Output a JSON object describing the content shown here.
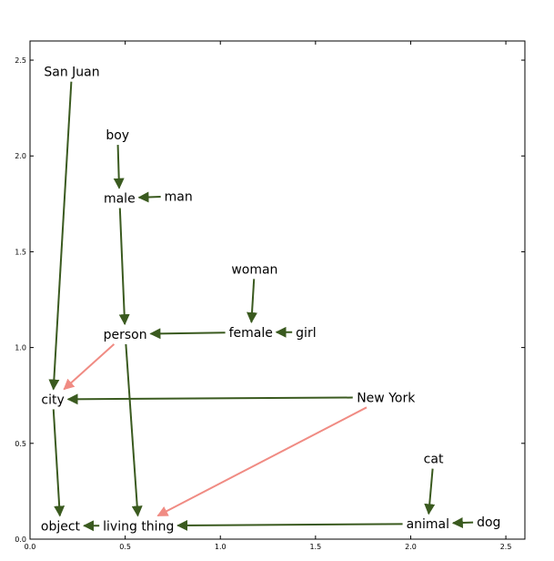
{
  "chart_data": {
    "type": "scatter",
    "title": "",
    "xlabel": "",
    "ylabel": "",
    "xlim": [
      0.0,
      2.6
    ],
    "ylim": [
      0.0,
      2.6
    ],
    "grid": false,
    "x_ticks": [
      "0.0",
      "0.5",
      "1.0",
      "1.5",
      "2.0",
      "2.5"
    ],
    "y_ticks": [
      "0.0",
      "0.5",
      "1.0",
      "1.5",
      "2.0",
      "2.5"
    ],
    "colors": {
      "green": "#3a5a1f",
      "red": "#f08b83"
    },
    "nodes": [
      {
        "id": "san_juan",
        "label": "San Juan",
        "x": 0.22,
        "y": 2.44
      },
      {
        "id": "boy",
        "label": "boy",
        "x": 0.46,
        "y": 2.11
      },
      {
        "id": "male",
        "label": "male",
        "x": 0.47,
        "y": 1.78
      },
      {
        "id": "man",
        "label": "man",
        "x": 0.78,
        "y": 1.79
      },
      {
        "id": "woman",
        "label": "woman",
        "x": 1.18,
        "y": 1.41
      },
      {
        "id": "person",
        "label": "person",
        "x": 0.5,
        "y": 1.07
      },
      {
        "id": "female",
        "label": "female",
        "x": 1.16,
        "y": 1.08
      },
      {
        "id": "girl",
        "label": "girl",
        "x": 1.45,
        "y": 1.08
      },
      {
        "id": "city",
        "label": "city",
        "x": 0.12,
        "y": 0.73
      },
      {
        "id": "new_york",
        "label": "New York",
        "x": 1.87,
        "y": 0.74
      },
      {
        "id": "cat",
        "label": "cat",
        "x": 2.12,
        "y": 0.42
      },
      {
        "id": "object",
        "label": "object",
        "x": 0.16,
        "y": 0.07
      },
      {
        "id": "living_thing",
        "label": "living thing",
        "x": 0.57,
        "y": 0.07
      },
      {
        "id": "animal",
        "label": "animal",
        "x": 2.09,
        "y": 0.08
      },
      {
        "id": "dog",
        "label": "dog",
        "x": 2.41,
        "y": 0.09
      }
    ],
    "edges": [
      {
        "from": "san_juan",
        "to": "city",
        "color": "green"
      },
      {
        "from": "boy",
        "to": "male",
        "color": "green"
      },
      {
        "from": "man",
        "to": "male",
        "color": "green"
      },
      {
        "from": "male",
        "to": "person",
        "color": "green"
      },
      {
        "from": "woman",
        "to": "female",
        "color": "green"
      },
      {
        "from": "girl",
        "to": "female",
        "color": "green"
      },
      {
        "from": "female",
        "to": "person",
        "color": "green"
      },
      {
        "from": "person",
        "to": "city",
        "color": "red"
      },
      {
        "from": "person",
        "to": "living_thing",
        "color": "green"
      },
      {
        "from": "new_york",
        "to": "city",
        "color": "green"
      },
      {
        "from": "new_york",
        "to": "living_thing",
        "color": "red"
      },
      {
        "from": "city",
        "to": "object",
        "color": "green"
      },
      {
        "from": "living_thing",
        "to": "object",
        "color": "green"
      },
      {
        "from": "cat",
        "to": "animal",
        "color": "green"
      },
      {
        "from": "dog",
        "to": "animal",
        "color": "green"
      },
      {
        "from": "animal",
        "to": "living_thing",
        "color": "green"
      }
    ]
  }
}
